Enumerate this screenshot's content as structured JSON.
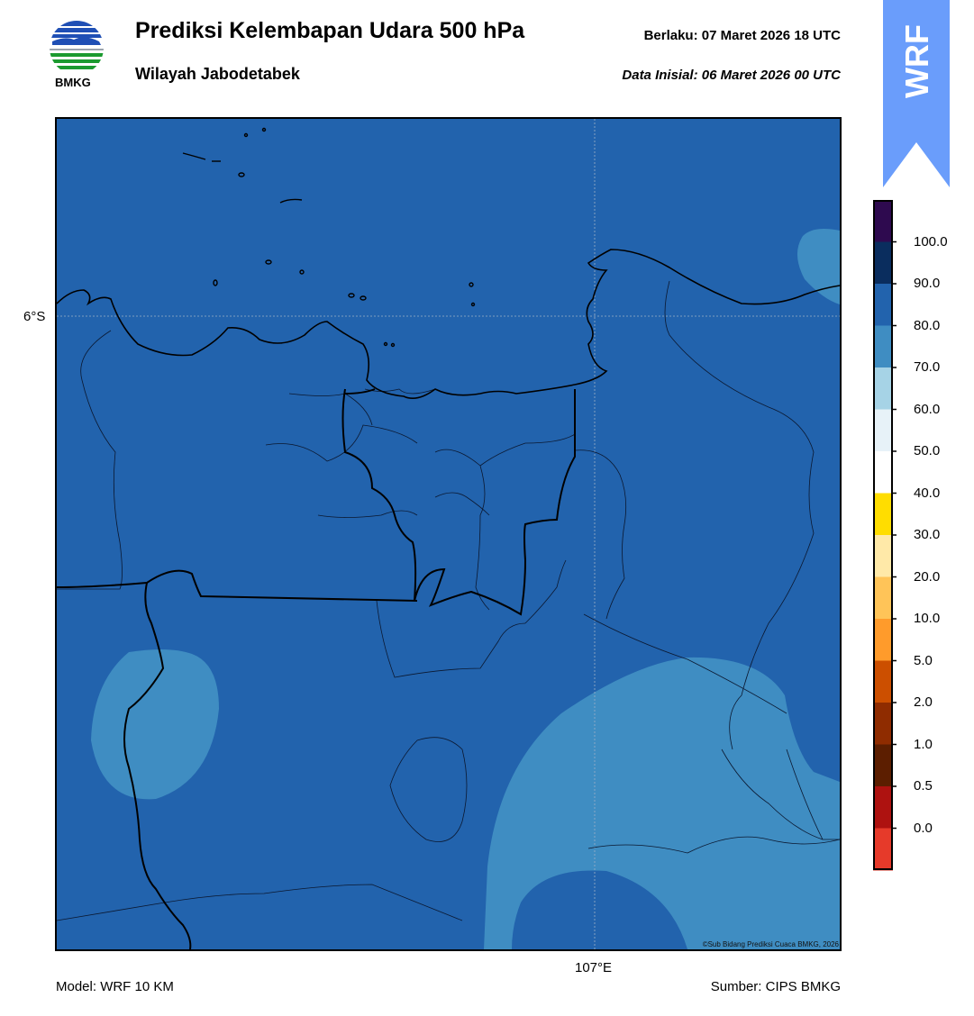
{
  "header": {
    "title": "Prediksi Kelembapan Udara 500 hPa",
    "subtitle": "Wilayah Jabodetabek",
    "valid": "Berlaku:  07 Maret 2026 18 UTC",
    "initial": "Data Inisial:  06 Maret 2026 00 UTC"
  },
  "logo": {
    "text": "BMKG",
    "icon": "bmkg-logo"
  },
  "badge": {
    "text": "WRF",
    "color": "#6a9dfb"
  },
  "map": {
    "lat_label": "6°S",
    "lon_label": "107°E",
    "credit": "©Sub Bidang Prediksi Cuaca BMKG, 2026",
    "base_color": "#2263ad",
    "shade_color": "#3f8dc2"
  },
  "colorbar": {
    "labels": [
      "100.0",
      "90.0",
      "80.0",
      "70.0",
      "60.0",
      "50.0",
      "40.0",
      "30.0",
      "20.0",
      "10.0",
      "5.0",
      "2.0",
      "1.0",
      "0.5",
      "0.0"
    ],
    "colors": [
      "#2e0a4f",
      "#0a2d5e",
      "#2263ad",
      "#3f8dc2",
      "#a6d3e6",
      "#e7f2f8",
      "#ffffff",
      "#ffdd00",
      "#ffe9a8",
      "#ffc458",
      "#ff9b2b",
      "#cc4f00",
      "#8f2c00",
      "#5c1e00",
      "#ae1210",
      "#e63a2a"
    ]
  },
  "footer": {
    "model": "Model: WRF 10 KM",
    "source": "Sumber: CIPS BMKG"
  }
}
